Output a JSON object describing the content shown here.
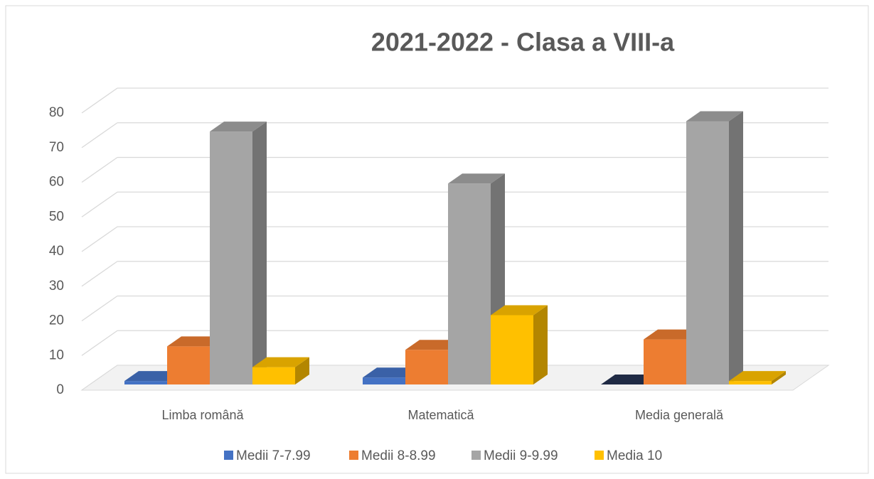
{
  "chart_data": {
    "type": "bar3d",
    "title": "2021-2022 - Clasa a VIII-a",
    "categories": [
      "Limba română",
      "Matematică",
      "Media generală"
    ],
    "series": [
      {
        "name": "Medii 7-7.99",
        "color": "#4472c4",
        "values": [
          1,
          2,
          0
        ]
      },
      {
        "name": "Medii 8-8.99",
        "color": "#ed7d31",
        "values": [
          11,
          10,
          13
        ]
      },
      {
        "name": "Medii 9-9.99",
        "color": "#a5a5a5",
        "values": [
          73,
          58,
          76
        ]
      },
      {
        "name": "Media 10",
        "color": "#ffc000",
        "values": [
          5,
          20,
          1
        ]
      }
    ],
    "ylim": [
      0,
      80
    ],
    "yticks": [
      0,
      10,
      20,
      30,
      40,
      50,
      60,
      70,
      80
    ],
    "grid": true,
    "legend": "bottom"
  }
}
